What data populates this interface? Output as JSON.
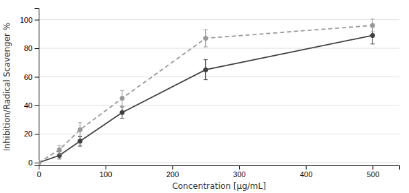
{
  "chart_data": {
    "type": "line",
    "xlabel": "Concentration [μg/mL]",
    "ylabel": "Inhibition/Radical Scavenger %",
    "x": [
      0,
      31,
      62,
      125,
      250,
      500
    ],
    "series": [
      {
        "color": "#404040",
        "values": [
          0,
          5,
          15,
          35,
          65,
          89
        ],
        "errors": [
          0,
          2.5,
          3.5,
          4.0,
          7.0,
          6.0
        ],
        "line_style": "solid",
        "marker": "circle"
      },
      {
        "color": "#999999",
        "values": [
          0,
          9,
          23,
          45,
          87,
          96
        ],
        "errors": [
          0,
          3.0,
          5.0,
          5.5,
          6.0,
          4.5
        ],
        "line_style": "dashed",
        "marker": "circle"
      }
    ],
    "xlim": [
      0,
      540
    ],
    "ylim": [
      -2,
      108
    ],
    "xticks": [
      0,
      100,
      200,
      300,
      400,
      500
    ],
    "yticks": [
      0,
      20,
      40,
      60,
      80,
      100
    ],
    "grid": true
  }
}
